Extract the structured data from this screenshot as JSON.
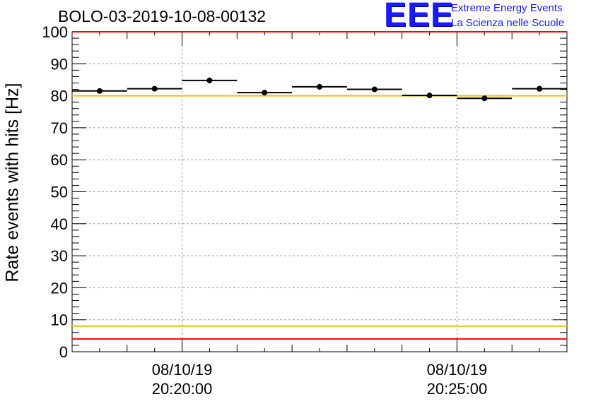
{
  "title": "BOLO-03-2019-10-08-00132",
  "logo": {
    "letters": "EEE",
    "line1": "Extreme Energy Events",
    "line2": "La Scienza nelle Scuole"
  },
  "chart_data": {
    "type": "scatter",
    "ylabel": "Rate events with hits [Hz]",
    "ylim": [
      0,
      100
    ],
    "yticks": [
      0,
      10,
      20,
      30,
      40,
      50,
      60,
      70,
      80,
      90,
      100
    ],
    "xlim": [
      "2019-10-08 20:18:00",
      "2019-10-08 20:27:00"
    ],
    "xticks": [
      {
        "date": "08/10/19",
        "time": "20:20:00"
      },
      {
        "date": "08/10/19",
        "time": "20:25:00"
      }
    ],
    "grid": true,
    "bin_width_seconds": 60,
    "series": [
      {
        "x": [
          "20:18:30",
          "20:19:30",
          "20:20:30",
          "20:21:30",
          "20:22:30",
          "20:23:30",
          "20:24:30",
          "20:25:30",
          "20:26:30"
        ],
        "values": [
          81.5,
          82.2,
          84.8,
          81.0,
          82.8,
          82.0,
          80.1,
          79.2,
          82.2
        ],
        "errors": [
          0.8,
          0.8,
          0.9,
          0.8,
          0.9,
          0.8,
          0.8,
          0.8,
          0.9
        ]
      }
    ],
    "reference_lines": [
      {
        "y": 100,
        "color": "#ff0000"
      },
      {
        "y": 80,
        "color": "#f0c000"
      },
      {
        "y": 8,
        "color": "#f0c000"
      },
      {
        "y": 4,
        "color": "#ff0000"
      }
    ]
  }
}
